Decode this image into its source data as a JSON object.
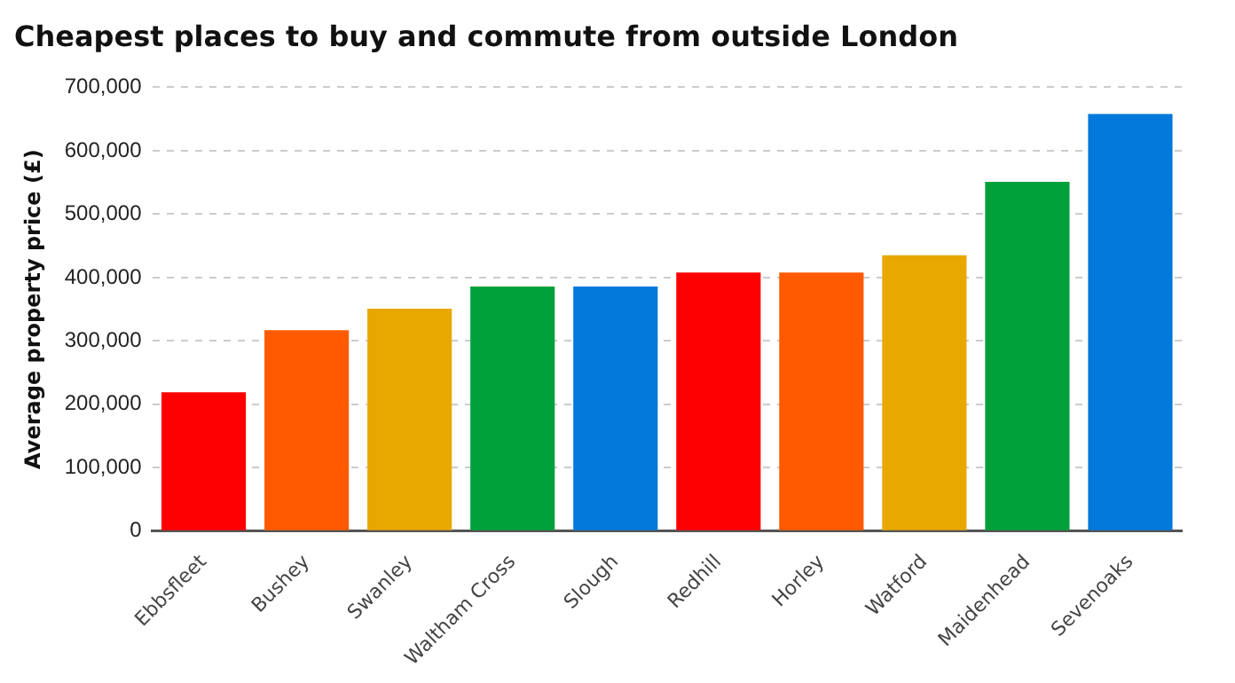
{
  "chart_data": {
    "type": "bar",
    "title": "Cheapest places to buy and commute from outside London",
    "ylabel": "Average property price (£)",
    "categories": [
      "Ebbsfleet",
      "Bushey",
      "Swanley",
      "Waltham Cross",
      "Slough",
      "Redhill",
      "Horley",
      "Watford",
      "Maidenhead",
      "Sevenoaks"
    ],
    "values": [
      219000,
      317000,
      351000,
      386000,
      386000,
      408000,
      408000,
      435000,
      551000,
      658000
    ],
    "colors": [
      "#ff0000",
      "#ff5a00",
      "#e8a800",
      "#00a03a",
      "#0079db",
      "#ff0000",
      "#ff5a00",
      "#e8a800",
      "#00a03a",
      "#0079db"
    ],
    "ylim": [
      0,
      700000
    ],
    "yticks": [
      0,
      {
        "value": 100000,
        "label": "100,000"
      },
      {
        "value": 200000,
        "label": "200,000"
      },
      {
        "value": 300000,
        "label": "300,000"
      },
      {
        "value": 400000,
        "label": "400,000"
      },
      {
        "value": 500000,
        "label": "500,000"
      },
      {
        "value": 600000,
        "label": "600,000"
      },
      {
        "value": 700000,
        "label": "700,000"
      }
    ],
    "grid": "y"
  }
}
